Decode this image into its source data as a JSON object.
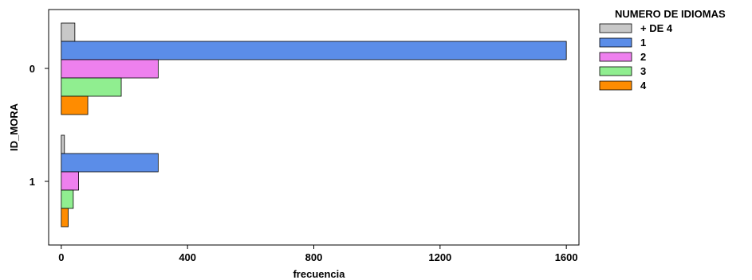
{
  "chart_data": {
    "type": "bar",
    "orientation": "horizontal",
    "xlabel": "frecuencia",
    "ylabel": "ID_MORA",
    "xlim": [
      -40,
      1640
    ],
    "xticks": [
      0,
      400,
      800,
      1200,
      1600
    ],
    "categories": [
      "0",
      "1"
    ],
    "legend": {
      "title": "NUMERO DE IDIOMAS",
      "placement": "right"
    },
    "series": [
      {
        "name": "+ DE 4",
        "color": "#c8c8c8",
        "values": [
          43,
          10
        ]
      },
      {
        "name": "1",
        "color": "#5b8de8",
        "values": [
          1600,
          307
        ]
      },
      {
        "name": "2",
        "color": "#ee80ee",
        "values": [
          307,
          55
        ]
      },
      {
        "name": "3",
        "color": "#90ee90",
        "values": [
          190,
          38
        ]
      },
      {
        "name": "4",
        "color": "#ff8c00",
        "values": [
          84,
          22
        ]
      }
    ],
    "grid": false
  }
}
